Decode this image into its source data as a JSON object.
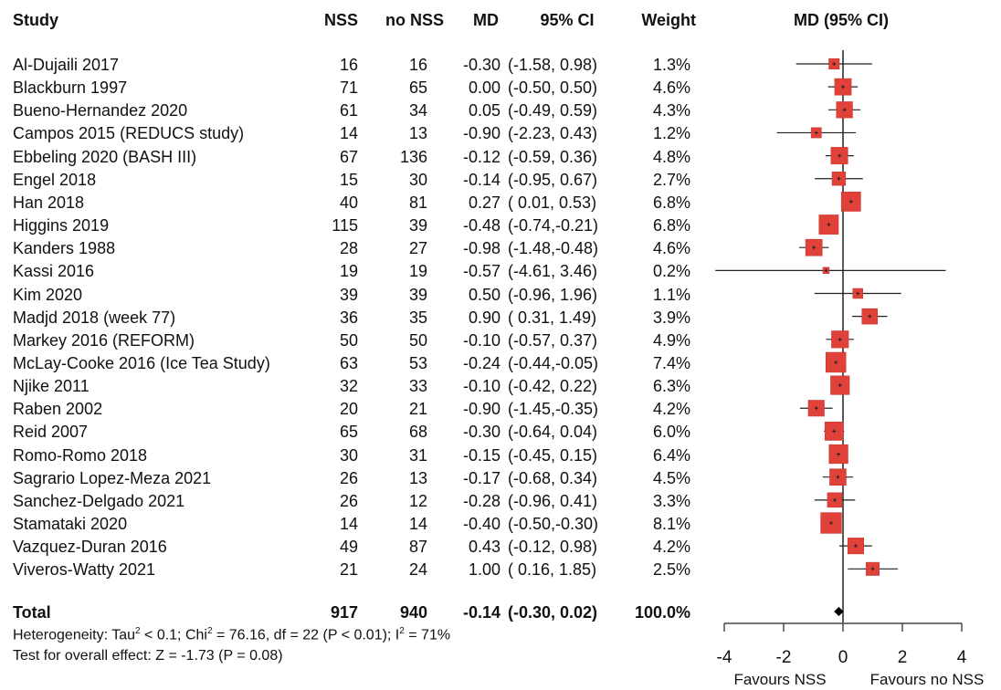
{
  "headers": {
    "study": "Study",
    "nss": "NSS",
    "no_nss": "no NSS",
    "md": "MD",
    "ci": "95% CI",
    "weight": "Weight",
    "plot": "MD (95% CI)"
  },
  "studies": [
    {
      "study": "Al-Dujaili 2017",
      "nss": "16",
      "no_nss": "16",
      "md": "-0.30",
      "ci": "(-1.58, 0.98)",
      "weight": "1.3%"
    },
    {
      "study": "Blackburn 1997",
      "nss": "71",
      "no_nss": "65",
      "md": "0.00",
      "ci": "(-0.50, 0.50)",
      "weight": "4.6%"
    },
    {
      "study": "Bueno-Hernandez 2020",
      "nss": "61",
      "no_nss": "34",
      "md": "0.05",
      "ci": "(-0.49, 0.59)",
      "weight": "4.3%"
    },
    {
      "study": "Campos 2015 (REDUCS study)",
      "nss": "14",
      "no_nss": "13",
      "md": "-0.90",
      "ci": "(-2.23, 0.43)",
      "weight": "1.2%"
    },
    {
      "study": "Ebbeling 2020 (BASH III)",
      "nss": "67",
      "no_nss": "136",
      "md": "-0.12",
      "ci": "(-0.59, 0.36)",
      "weight": "4.8%"
    },
    {
      "study": "Engel 2018",
      "nss": "15",
      "no_nss": "30",
      "md": "-0.14",
      "ci": "(-0.95, 0.67)",
      "weight": "2.7%"
    },
    {
      "study": "Han 2018",
      "nss": "40",
      "no_nss": "81",
      "md": "0.27",
      "ci": "( 0.01, 0.53)",
      "weight": "6.8%"
    },
    {
      "study": "Higgins 2019",
      "nss": "115",
      "no_nss": "39",
      "md": "-0.48",
      "ci": "(-0.74,-0.21)",
      "weight": "6.8%"
    },
    {
      "study": "Kanders 1988",
      "nss": "28",
      "no_nss": "27",
      "md": "-0.98",
      "ci": "(-1.48,-0.48)",
      "weight": "4.6%"
    },
    {
      "study": "Kassi 2016",
      "nss": "19",
      "no_nss": "19",
      "md": "-0.57",
      "ci": "(-4.61, 3.46)",
      "weight": "0.2%"
    },
    {
      "study": "Kim 2020",
      "nss": "39",
      "no_nss": "39",
      "md": "0.50",
      "ci": "(-0.96, 1.96)",
      "weight": "1.1%"
    },
    {
      "study": "Madjd 2018 (week 77)",
      "nss": "36",
      "no_nss": "35",
      "md": "0.90",
      "ci": "( 0.31, 1.49)",
      "weight": "3.9%"
    },
    {
      "study": "Markey 2016 (REFORM)",
      "nss": "50",
      "no_nss": "50",
      "md": "-0.10",
      "ci": "(-0.57, 0.37)",
      "weight": "4.9%"
    },
    {
      "study": "McLay-Cooke 2016 (Ice Tea Study)",
      "nss": "63",
      "no_nss": "53",
      "md": "-0.24",
      "ci": "(-0.44,-0.05)",
      "weight": "7.4%"
    },
    {
      "study": "Njike 2011",
      "nss": "32",
      "no_nss": "33",
      "md": "-0.10",
      "ci": "(-0.42, 0.22)",
      "weight": "6.3%"
    },
    {
      "study": "Raben 2002",
      "nss": "20",
      "no_nss": "21",
      "md": "-0.90",
      "ci": "(-1.45,-0.35)",
      "weight": "4.2%"
    },
    {
      "study": "Reid 2007",
      "nss": "65",
      "no_nss": "68",
      "md": "-0.30",
      "ci": "(-0.64, 0.04)",
      "weight": "6.0%"
    },
    {
      "study": "Romo-Romo 2018",
      "nss": "30",
      "no_nss": "31",
      "md": "-0.15",
      "ci": "(-0.45, 0.15)",
      "weight": "6.4%"
    },
    {
      "study": "Sagrario Lopez-Meza 2021",
      "nss": "26",
      "no_nss": "13",
      "md": "-0.17",
      "ci": "(-0.68, 0.34)",
      "weight": "4.5%"
    },
    {
      "study": "Sanchez-Delgado 2021",
      "nss": "26",
      "no_nss": "12",
      "md": "-0.28",
      "ci": "(-0.96, 0.41)",
      "weight": "3.3%"
    },
    {
      "study": "Stamataki 2020",
      "nss": "14",
      "no_nss": "14",
      "md": "-0.40",
      "ci": "(-0.50,-0.30)",
      "weight": "8.1%"
    },
    {
      "study": "Vazquez-Duran 2016",
      "nss": "49",
      "no_nss": "87",
      "md": "0.43",
      "ci": "(-0.12, 0.98)",
      "weight": "4.2%"
    },
    {
      "study": "Viveros-Watty 2021",
      "nss": "21",
      "no_nss": "24",
      "md": "1.00",
      "ci": "( 0.16, 1.85)",
      "weight": "2.5%"
    }
  ],
  "total": {
    "study": "Total",
    "nss": "917",
    "no_nss": "940",
    "md": "-0.14",
    "ci": "(-0.30, 0.02)",
    "weight": "100.0%"
  },
  "heterogeneity": {
    "prefix": "Heterogeneity: Tau",
    "tau_exp": "2",
    "mid1": " < 0.1; Chi",
    "chi_exp": "2",
    "mid2": " = 76.16, df = 22 (P < 0.01); I",
    "i_exp": "2",
    "suffix": " = 71%"
  },
  "overall_effect": "Test for overall effect: Z = -1.73 (P = 0.08)",
  "axis": {
    "ticks": [
      "-4",
      "-2",
      "0",
      "2",
      "4"
    ],
    "favours_left": "Favours NSS",
    "favours_right": "Favours no NSS"
  },
  "colors": {
    "box_fill": "#e0423a",
    "box_stroke": "#c0302a",
    "line": "#222222",
    "text": "#111111"
  },
  "chart_data": {
    "type": "forest",
    "xlim": [
      -4,
      4
    ],
    "x_ticks": [
      -4,
      -2,
      0,
      2,
      4
    ],
    "reference_line": 0,
    "series": [
      {
        "study": "Al-Dujaili 2017",
        "md": -0.3,
        "lower": -1.58,
        "upper": 0.98,
        "weight": 1.3
      },
      {
        "study": "Blackburn 1997",
        "md": 0.0,
        "lower": -0.5,
        "upper": 0.5,
        "weight": 4.6
      },
      {
        "study": "Bueno-Hernandez 2020",
        "md": 0.05,
        "lower": -0.49,
        "upper": 0.59,
        "weight": 4.3
      },
      {
        "study": "Campos 2015 (REDUCS study)",
        "md": -0.9,
        "lower": -2.23,
        "upper": 0.43,
        "weight": 1.2
      },
      {
        "study": "Ebbeling 2020 (BASH III)",
        "md": -0.12,
        "lower": -0.59,
        "upper": 0.36,
        "weight": 4.8
      },
      {
        "study": "Engel 2018",
        "md": -0.14,
        "lower": -0.95,
        "upper": 0.67,
        "weight": 2.7
      },
      {
        "study": "Han 2018",
        "md": 0.27,
        "lower": 0.01,
        "upper": 0.53,
        "weight": 6.8
      },
      {
        "study": "Higgins 2019",
        "md": -0.48,
        "lower": -0.74,
        "upper": -0.21,
        "weight": 6.8
      },
      {
        "study": "Kanders 1988",
        "md": -0.98,
        "lower": -1.48,
        "upper": -0.48,
        "weight": 4.6
      },
      {
        "study": "Kassi 2016",
        "md": -0.57,
        "lower": -4.61,
        "upper": 3.46,
        "weight": 0.2
      },
      {
        "study": "Kim 2020",
        "md": 0.5,
        "lower": -0.96,
        "upper": 1.96,
        "weight": 1.1
      },
      {
        "study": "Madjd 2018 (week 77)",
        "md": 0.9,
        "lower": 0.31,
        "upper": 1.49,
        "weight": 3.9
      },
      {
        "study": "Markey 2016 (REFORM)",
        "md": -0.1,
        "lower": -0.57,
        "upper": 0.37,
        "weight": 4.9
      },
      {
        "study": "McLay-Cooke 2016 (Ice Tea Study)",
        "md": -0.24,
        "lower": -0.44,
        "upper": -0.05,
        "weight": 7.4
      },
      {
        "study": "Njike 2011",
        "md": -0.1,
        "lower": -0.42,
        "upper": 0.22,
        "weight": 6.3
      },
      {
        "study": "Raben 2002",
        "md": -0.9,
        "lower": -1.45,
        "upper": -0.35,
        "weight": 4.2
      },
      {
        "study": "Reid 2007",
        "md": -0.3,
        "lower": -0.64,
        "upper": 0.04,
        "weight": 6.0
      },
      {
        "study": "Romo-Romo 2018",
        "md": -0.15,
        "lower": -0.45,
        "upper": 0.15,
        "weight": 6.4
      },
      {
        "study": "Sagrario Lopez-Meza 2021",
        "md": -0.17,
        "lower": -0.68,
        "upper": 0.34,
        "weight": 4.5
      },
      {
        "study": "Sanchez-Delgado 2021",
        "md": -0.28,
        "lower": -0.96,
        "upper": 0.41,
        "weight": 3.3
      },
      {
        "study": "Stamataki 2020",
        "md": -0.4,
        "lower": -0.5,
        "upper": -0.3,
        "weight": 8.1
      },
      {
        "study": "Vazquez-Duran 2016",
        "md": 0.43,
        "lower": -0.12,
        "upper": 0.98,
        "weight": 4.2
      },
      {
        "study": "Viveros-Watty 2021",
        "md": 1.0,
        "lower": 0.16,
        "upper": 1.85,
        "weight": 2.5
      }
    ],
    "pooled": {
      "md": -0.14,
      "lower": -0.3,
      "upper": 0.02
    }
  }
}
